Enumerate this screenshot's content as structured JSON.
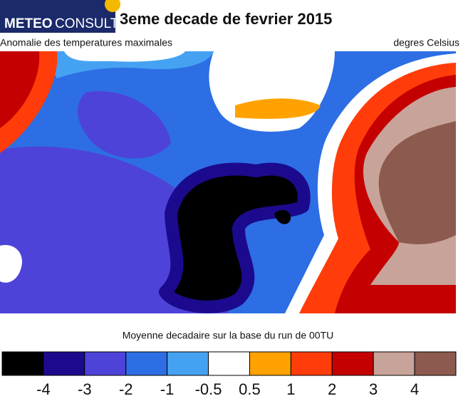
{
  "header": {
    "logo_left": "METEO",
    "logo_right": "CONSULT",
    "title": "3eme decade de fevrier 2015",
    "subtitle_left": "Anomalie des temperatures maximales",
    "subtitle_right": "degres Celsius"
  },
  "map": {
    "caption": "Moyenne decadaire sur la base du run de 00TU"
  },
  "colorbar": {
    "colors": [
      "#000000",
      "#1c0a8e",
      "#4e43d8",
      "#2d6ee4",
      "#45a2f2",
      "#ffffff",
      "#ffa200",
      "#ff3c0a",
      "#c40000",
      "#c8a39a",
      "#8c5a4e"
    ],
    "ticks": [
      -4,
      -3,
      -2,
      -1,
      -0.5,
      0.5,
      1,
      2,
      3,
      4
    ]
  }
}
